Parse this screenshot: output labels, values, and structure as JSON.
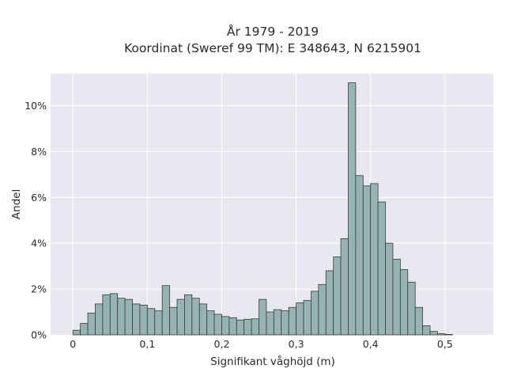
{
  "chart_data": {
    "type": "bar",
    "title": "År 1979 - 2019",
    "subtitle": "Koordinat (Sweref 99 TM): E 348643, N 6215901",
    "xlabel": "Signifikant våghöjd (m)",
    "ylabel": "Andel",
    "bin_width": 0.01,
    "bin_start": 0,
    "values": [
      0.2,
      0.5,
      0.95,
      1.35,
      1.75,
      1.8,
      1.6,
      1.55,
      1.35,
      1.3,
      1.15,
      1.05,
      2.15,
      1.2,
      1.55,
      1.75,
      1.6,
      1.35,
      1.05,
      0.9,
      0.8,
      0.75,
      0.65,
      0.68,
      0.7,
      1.55,
      1.0,
      1.1,
      1.05,
      1.2,
      1.4,
      1.5,
      1.9,
      2.2,
      2.8,
      3.4,
      4.2,
      11.0,
      6.95,
      6.5,
      6.6,
      5.8,
      4.0,
      3.3,
      2.85,
      2.3,
      1.2,
      0.4,
      0.15,
      0.05,
      0.02
    ],
    "xlim": [
      -0.03,
      0.565
    ],
    "ylim": [
      0,
      11.4
    ],
    "xticks": [
      {
        "value": 0,
        "label": "0"
      },
      {
        "value": 0.1,
        "label": "0,1"
      },
      {
        "value": 0.2,
        "label": "0,2"
      },
      {
        "value": 0.3,
        "label": "0,3"
      },
      {
        "value": 0.4,
        "label": "0,4"
      },
      {
        "value": 0.5,
        "label": "0,5"
      }
    ],
    "yticks": [
      {
        "value": 0,
        "label": "0%"
      },
      {
        "value": 2,
        "label": "2%"
      },
      {
        "value": 4,
        "label": "4%"
      },
      {
        "value": 6,
        "label": "6%"
      },
      {
        "value": 8,
        "label": "8%"
      },
      {
        "value": 10,
        "label": "10%"
      }
    ],
    "grid": true,
    "colors": {
      "bar_fill": "#97b2b3",
      "bar_edge": "#3b3b3b",
      "plot_background": "#e8e8f0",
      "grid": "#ffffff"
    }
  }
}
